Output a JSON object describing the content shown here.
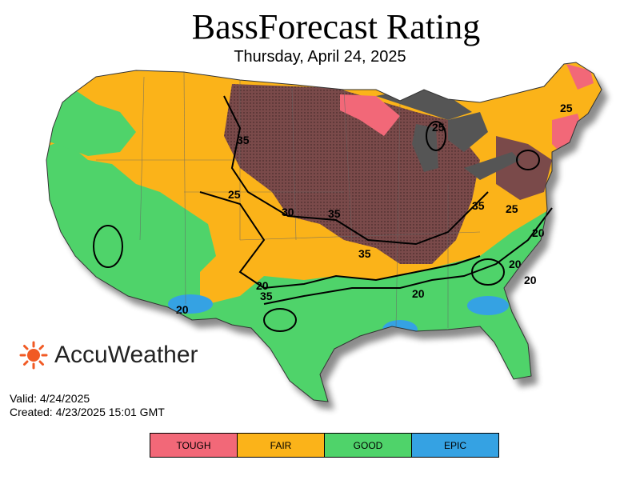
{
  "title": "BassForecast Rating",
  "date": "Thursday, April 24, 2025",
  "brand": "AccuWeather",
  "valid": "Valid: 4/24/2025",
  "created": "Created: 4/23/2025 15:01 GMT",
  "legend": [
    {
      "label": "TOUGH",
      "color": "#f26878"
    },
    {
      "label": "FAIR",
      "color": "#fbb319"
    },
    {
      "label": "GOOD",
      "color": "#4fd36a"
    },
    {
      "label": "EPIC",
      "color": "#35a2e3"
    }
  ],
  "contour_labels": [
    "35",
    "35",
    "30",
    "35",
    "35",
    "35",
    "25",
    "25",
    "20",
    "20",
    "20",
    "25",
    "20",
    "20",
    "25",
    "20"
  ],
  "colors": {
    "brand_sun": "#f15a24",
    "hatched": "#7a4a4a",
    "lakes": "#555555"
  }
}
